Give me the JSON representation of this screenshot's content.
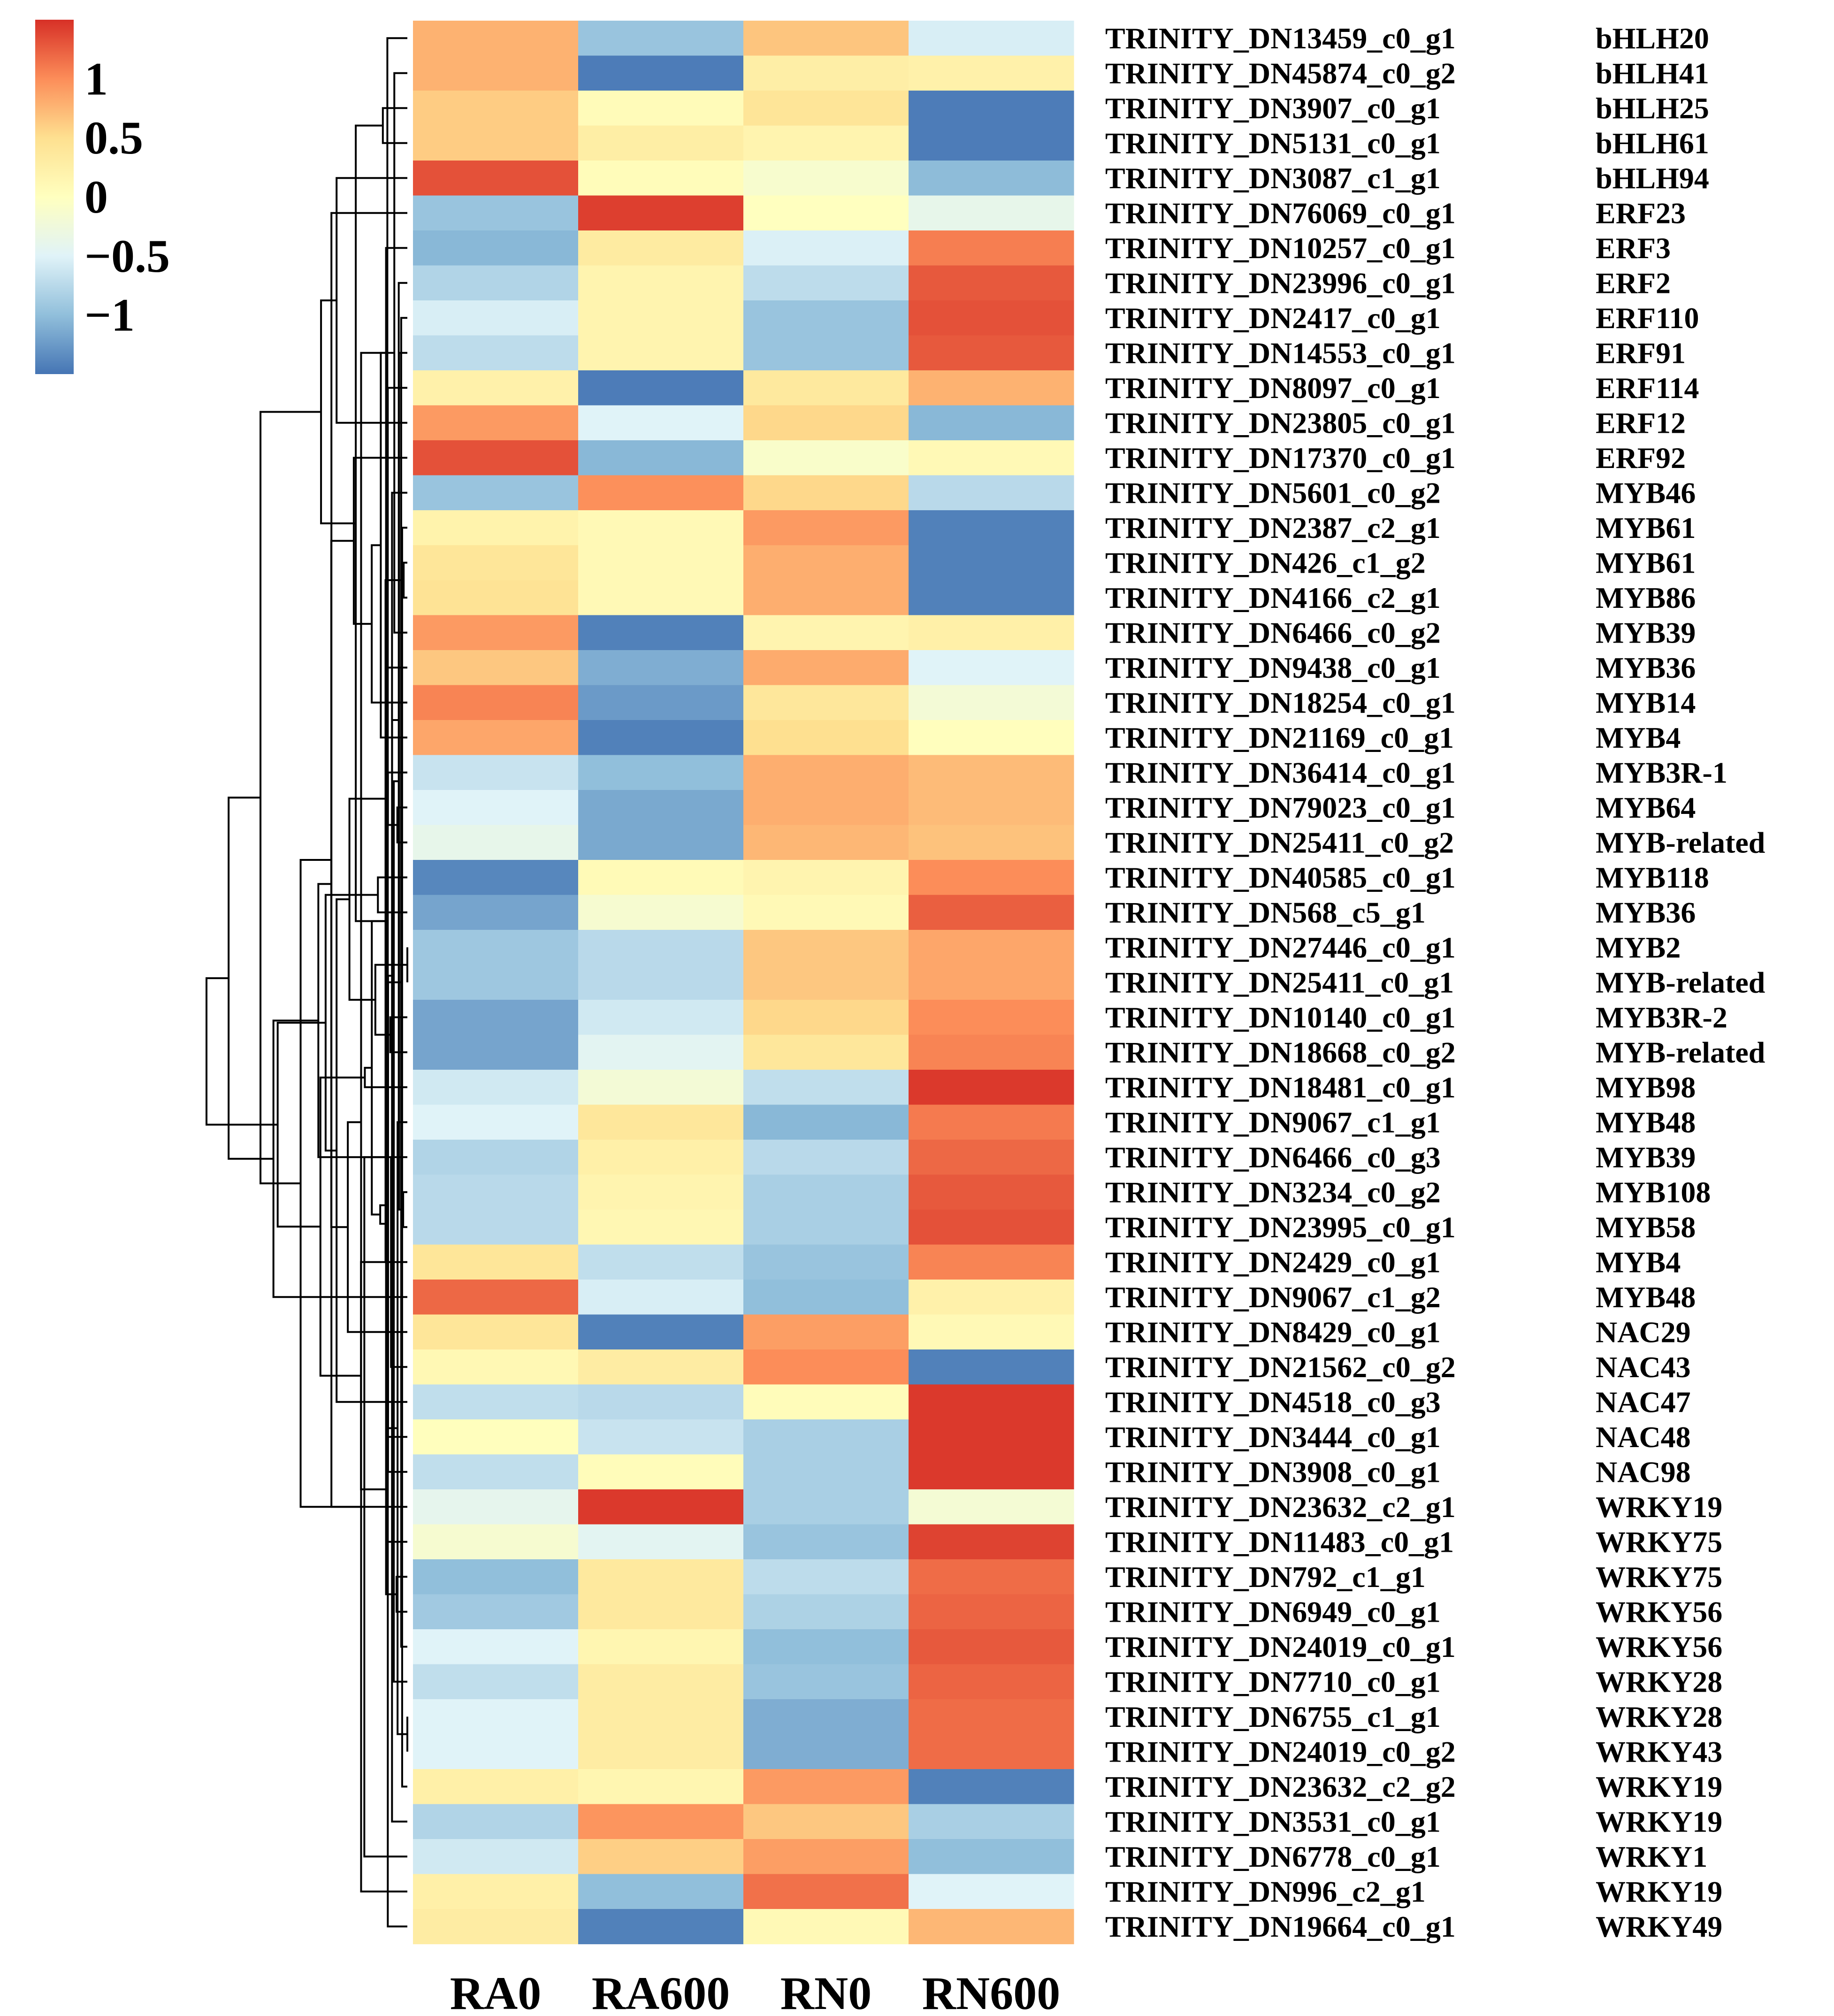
{
  "chart_data": {
    "type": "heatmap",
    "title": "",
    "columns": [
      "RA0",
      "RA600",
      "RN0",
      "RN600"
    ],
    "rows": [
      {
        "gene": "TRINITY_DN13459_c0_g1",
        "tf": "bHLH20",
        "values": [
          0.78,
          -0.95,
          0.66,
          -0.55
        ]
      },
      {
        "gene": "TRINITY_DN45874_c0_g2",
        "tf": "bHLH41",
        "values": [
          0.78,
          -1.45,
          0.27,
          0.22
        ]
      },
      {
        "gene": "TRINITY_DN3907_c0_g1",
        "tf": "bHLH25",
        "values": [
          0.62,
          0.06,
          0.42,
          -1.45
        ]
      },
      {
        "gene": "TRINITY_DN5131_c0_g1",
        "tf": "bHLH61",
        "values": [
          0.62,
          0.28,
          0.17,
          -1.45
        ]
      },
      {
        "gene": "TRINITY_DN3087_c1_g1",
        "tf": "bHLH94",
        "values": [
          1.32,
          0.05,
          -0.13,
          -1.02
        ]
      },
      {
        "gene": "TRINITY_DN76069_c0_g1",
        "tf": "ERF23",
        "values": [
          -0.95,
          1.42,
          0.0,
          -0.38
        ]
      },
      {
        "gene": "TRINITY_DN10257_c0_g1",
        "tf": "ERF3",
        "values": [
          -1.05,
          0.32,
          -0.53,
          1.08
        ]
      },
      {
        "gene": "TRINITY_DN23996_c0_g1",
        "tf": "ERF2",
        "values": [
          -0.8,
          0.17,
          -0.72,
          1.28
        ]
      },
      {
        "gene": "TRINITY_DN2417_c0_g1",
        "tf": "ERF110",
        "values": [
          -0.55,
          0.17,
          -0.95,
          1.32
        ]
      },
      {
        "gene": "TRINITY_DN14553_c0_g1",
        "tf": "ERF91",
        "values": [
          -0.72,
          0.17,
          -0.95,
          1.28
        ]
      },
      {
        "gene": "TRINITY_DN8097_c0_g1",
        "tf": "ERF114",
        "values": [
          0.22,
          -1.45,
          0.35,
          0.78
        ]
      },
      {
        "gene": "TRINITY_DN23805_c0_g1",
        "tf": "ERF12",
        "values": [
          0.92,
          -0.5,
          0.55,
          -1.05
        ]
      },
      {
        "gene": "TRINITY_DN17370_c0_g1",
        "tf": "ERF92",
        "values": [
          1.32,
          -1.05,
          -0.1,
          0.1
        ]
      },
      {
        "gene": "TRINITY_DN5601_c0_g2",
        "tf": "MYB46",
        "values": [
          -0.95,
          0.98,
          0.55,
          -0.75
        ]
      },
      {
        "gene": "TRINITY_DN2387_c2_g1",
        "tf": "MYB61",
        "values": [
          0.2,
          0.1,
          0.92,
          -1.42
        ]
      },
      {
        "gene": "TRINITY_DN426_c1_g2",
        "tf": "MYB61",
        "values": [
          0.4,
          0.1,
          0.8,
          -1.42
        ]
      },
      {
        "gene": "TRINITY_DN4166_c2_g1",
        "tf": "MYB86",
        "values": [
          0.45,
          0.1,
          0.8,
          -1.42
        ]
      },
      {
        "gene": "TRINITY_DN6466_c0_g2",
        "tf": "MYB39",
        "values": [
          0.92,
          -1.42,
          0.17,
          0.25
        ]
      },
      {
        "gene": "TRINITY_DN9438_c0_g1",
        "tf": "MYB36",
        "values": [
          0.65,
          -1.12,
          0.82,
          -0.5
        ]
      },
      {
        "gene": "TRINITY_DN18254_c0_g1",
        "tf": "MYB14",
        "values": [
          1.05,
          -1.25,
          0.38,
          -0.2
        ]
      },
      {
        "gene": "TRINITY_DN21169_c0_g1",
        "tf": "MYB4",
        "values": [
          0.85,
          -1.42,
          0.5,
          0.02
        ]
      },
      {
        "gene": "TRINITY_DN36414_c0_g1",
        "tf": "MYB3R-1",
        "values": [
          -0.65,
          -1.0,
          0.8,
          0.72
        ]
      },
      {
        "gene": "TRINITY_DN79023_c0_g1",
        "tf": "MYB64",
        "values": [
          -0.5,
          -1.15,
          0.8,
          0.72
        ]
      },
      {
        "gene": "TRINITY_DN25411_c0_g2",
        "tf": "MYB-related",
        "values": [
          -0.38,
          -1.15,
          0.75,
          0.68
        ]
      },
      {
        "gene": "TRINITY_DN40585_c0_g1",
        "tf": "MYB118",
        "values": [
          -1.38,
          0.08,
          0.17,
          1.0
        ]
      },
      {
        "gene": "TRINITY_DN568_c5_g1",
        "tf": "MYB36",
        "values": [
          -1.18,
          -0.15,
          0.1,
          1.25
        ]
      },
      {
        "gene": "TRINITY_DN27446_c0_g1",
        "tf": "MYB2",
        "values": [
          -0.92,
          -0.75,
          0.65,
          0.85
        ]
      },
      {
        "gene": "TRINITY_DN25411_c0_g1",
        "tf": "MYB-related",
        "values": [
          -0.92,
          -0.75,
          0.65,
          0.85
        ]
      },
      {
        "gene": "TRINITY_DN10140_c0_g1",
        "tf": "MYB3R-2",
        "values": [
          -1.18,
          -0.6,
          0.55,
          1.0
        ]
      },
      {
        "gene": "TRINITY_DN18668_c0_g2",
        "tf": "MYB-related",
        "values": [
          -1.18,
          -0.45,
          0.38,
          1.05
        ]
      },
      {
        "gene": "TRINITY_DN18481_c0_g1",
        "tf": "MYB98",
        "values": [
          -0.6,
          -0.2,
          -0.7,
          1.45
        ]
      },
      {
        "gene": "TRINITY_DN9067_c1_g1",
        "tf": "MYB48",
        "values": [
          -0.5,
          0.38,
          -1.05,
          1.1
        ]
      },
      {
        "gene": "TRINITY_DN6466_c0_g3",
        "tf": "MYB39",
        "values": [
          -0.8,
          0.25,
          -0.75,
          1.2
        ]
      },
      {
        "gene": "TRINITY_DN3234_c0_g2",
        "tf": "MYB108",
        "values": [
          -0.75,
          0.17,
          -0.85,
          1.28
        ]
      },
      {
        "gene": "TRINITY_DN23995_c0_g1",
        "tf": "MYB58",
        "values": [
          -0.75,
          0.13,
          -0.85,
          1.32
        ]
      },
      {
        "gene": "TRINITY_DN2429_c0_g1",
        "tf": "MYB4",
        "values": [
          0.4,
          -0.7,
          -0.95,
          1.05
        ]
      },
      {
        "gene": "TRINITY_DN9067_c1_g2",
        "tf": "MYB48",
        "values": [
          1.2,
          -0.55,
          -1.0,
          0.22
        ]
      },
      {
        "gene": "TRINITY_DN8429_c0_g1",
        "tf": "NAC29",
        "values": [
          0.4,
          -1.42,
          0.9,
          0.1
        ]
      },
      {
        "gene": "TRINITY_DN21562_c0_g2",
        "tf": "NAC43",
        "values": [
          0.12,
          0.3,
          1.0,
          -1.42
        ]
      },
      {
        "gene": "TRINITY_DN4518_c0_g3",
        "tf": "NAC47",
        "values": [
          -0.7,
          -0.75,
          0.05,
          1.45
        ]
      },
      {
        "gene": "TRINITY_DN3444_c0_g1",
        "tf": "NAC48",
        "values": [
          0.02,
          -0.65,
          -0.85,
          1.45
        ]
      },
      {
        "gene": "TRINITY_DN3908_c0_g1",
        "tf": "NAC98",
        "values": [
          -0.7,
          0.05,
          -0.85,
          1.45
        ]
      },
      {
        "gene": "TRINITY_DN23632_c2_g1",
        "tf": "WRKY19",
        "values": [
          -0.4,
          1.45,
          -0.85,
          -0.18
        ]
      },
      {
        "gene": "TRINITY_DN11483_c0_g1",
        "tf": "WRKY75",
        "values": [
          -0.15,
          -0.45,
          -0.95,
          1.4
        ]
      },
      {
        "gene": "TRINITY_DN792_c1_g1",
        "tf": "WRKY75",
        "values": [
          -1.0,
          0.35,
          -0.72,
          1.18
        ]
      },
      {
        "gene": "TRINITY_DN6949_c0_g1",
        "tf": "WRKY56",
        "values": [
          -0.9,
          0.35,
          -0.82,
          1.22
        ]
      },
      {
        "gene": "TRINITY_DN24019_c0_g1",
        "tf": "WRKY56",
        "values": [
          -0.5,
          0.15,
          -1.0,
          1.28
        ]
      },
      {
        "gene": "TRINITY_DN7710_c0_g1",
        "tf": "WRKY28",
        "values": [
          -0.7,
          0.3,
          -0.95,
          1.22
        ]
      },
      {
        "gene": "TRINITY_DN6755_c1_g1",
        "tf": "WRKY28",
        "values": [
          -0.5,
          0.3,
          -1.12,
          1.18
        ]
      },
      {
        "gene": "TRINITY_DN24019_c0_g2",
        "tf": "WRKY43",
        "values": [
          -0.5,
          0.3,
          -1.12,
          1.18
        ]
      },
      {
        "gene": "TRINITY_DN23632_c2_g2",
        "tf": "WRKY19",
        "values": [
          0.25,
          0.15,
          0.92,
          -1.42
        ]
      },
      {
        "gene": "TRINITY_DN3531_c0_g1",
        "tf": "WRKY19",
        "values": [
          -0.8,
          0.95,
          0.65,
          -0.85
        ]
      },
      {
        "gene": "TRINITY_DN6778_c0_g1",
        "tf": "WRKY1",
        "values": [
          -0.6,
          0.6,
          0.9,
          -1.0
        ]
      },
      {
        "gene": "TRINITY_DN996_c2_g1",
        "tf": "WRKY19",
        "values": [
          0.25,
          -1.0,
          1.15,
          -0.5
        ]
      },
      {
        "gene": "TRINITY_DN19664_c0_g1",
        "tf": "WRKY49",
        "values": [
          0.3,
          -1.42,
          0.1,
          0.75
        ]
      }
    ],
    "colorbar": {
      "ticks": [
        {
          "value": 1,
          "label": "1"
        },
        {
          "value": 0.5,
          "label": "0.5"
        },
        {
          "value": 0,
          "label": "0"
        },
        {
          "value": -0.5,
          "label": "−0.5"
        },
        {
          "value": -1,
          "label": "−1"
        }
      ],
      "range": [
        -1.5,
        1.5
      ],
      "colors": [
        "#4575b4",
        "#91bfdb",
        "#e0f3f8",
        "#ffffbf",
        "#fee090",
        "#fc8d59",
        "#d73027"
      ]
    },
    "row_dendrogram": true,
    "xlabel": "",
    "ylabel": ""
  }
}
